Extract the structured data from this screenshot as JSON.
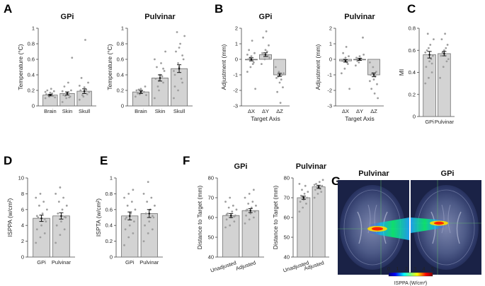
{
  "panels": [
    {
      "label": "A",
      "title": "GPi",
      "type": "bar",
      "categories": [
        "Brain",
        "Skin",
        "Skull"
      ],
      "values": [
        0.14,
        0.16,
        0.19
      ],
      "errors": [
        0.01,
        0.02,
        0.03
      ],
      "ylim": [
        0,
        1
      ],
      "yticks": [
        0,
        0.2,
        0.4,
        0.6,
        0.8,
        1
      ],
      "ylabel": "Temperature (°C)",
      "xlabel": "",
      "dots": [
        [
          0.1,
          0.12,
          0.13,
          0.15,
          0.17,
          0.19,
          0.2,
          0.22,
          0.11,
          0.14,
          0.16,
          0.18
        ],
        [
          0.05,
          0.1,
          0.12,
          0.14,
          0.17,
          0.2,
          0.25,
          0.3,
          0.62,
          0.13,
          0.11,
          0.19
        ],
        [
          0.08,
          0.12,
          0.15,
          0.2,
          0.24,
          0.3,
          0.36,
          0.85,
          0.18,
          0.14,
          0.21,
          0.26
        ]
      ]
    },
    {
      "label": "",
      "title": "Pulvinar",
      "type": "bar",
      "categories": [
        "Brain",
        "Skin",
        "Skull"
      ],
      "values": [
        0.18,
        0.36,
        0.48
      ],
      "errors": [
        0.02,
        0.04,
        0.05
      ],
      "ylim": [
        0,
        1
      ],
      "yticks": [
        0,
        0.2,
        0.4,
        0.6,
        0.8,
        1
      ],
      "ylabel": "Temperature (°C)",
      "xlabel": "",
      "dots": [
        [
          0.12,
          0.15,
          0.18,
          0.2,
          0.22,
          0.25,
          0.16,
          0.19,
          0.14,
          0.21
        ],
        [
          0.1,
          0.2,
          0.3,
          0.35,
          0.4,
          0.45,
          0.5,
          0.55,
          0.7,
          0.25,
          0.38,
          0.6,
          0.33,
          0.48
        ],
        [
          0.1,
          0.2,
          0.3,
          0.4,
          0.5,
          0.6,
          0.7,
          0.8,
          0.9,
          0.95,
          0.35,
          0.45,
          0.55,
          0.65,
          0.25,
          0.75
        ]
      ]
    },
    {
      "label": "B",
      "title": "GPi",
      "type": "bar",
      "categories": [
        "ΔX",
        "ΔY",
        "ΔZ"
      ],
      "values": [
        0,
        0.3,
        -1
      ],
      "errors": [
        0.1,
        0.12,
        0.1
      ],
      "ylim": [
        -3,
        2
      ],
      "yticks": [
        -3,
        -2,
        -1,
        0,
        1,
        2
      ],
      "ylabel": "Adjustment (mm)",
      "xlabel": "Target Axis",
      "dots": [
        [
          -0.8,
          -0.5,
          -0.2,
          0,
          0.2,
          0.4,
          0.6,
          1.2,
          -1.9,
          0.1,
          -0.3,
          0.3
        ],
        [
          -0.3,
          0,
          0.2,
          0.4,
          0.6,
          0.9,
          1.4,
          1.8,
          0.1,
          0.3,
          0.5
        ],
        [
          -0.5,
          -0.8,
          -1,
          -1.2,
          -1.5,
          -1.8,
          -2.1,
          -2.8,
          -0.9,
          -1.1,
          -1.3
        ]
      ]
    },
    {
      "label": "",
      "title": "Pulvinar",
      "type": "bar",
      "categories": [
        "ΔX",
        "ΔY",
        "ΔZ"
      ],
      "values": [
        -0.1,
        0,
        -1
      ],
      "errors": [
        0.08,
        0.07,
        0.12
      ],
      "ylim": [
        -3,
        2
      ],
      "yticks": [
        -3,
        -2,
        -1,
        0,
        1,
        2
      ],
      "ylabel": "Adjustment (mm)",
      "xlabel": "Target Axis",
      "dots": [
        [
          -0.9,
          -0.6,
          -0.3,
          -0.1,
          0.1,
          0.2,
          0.4,
          0.8,
          -1.9,
          0,
          -0.2
        ],
        [
          -0.4,
          -0.2,
          0,
          0.1,
          0.2,
          1.4,
          -0.1,
          0.05,
          0.3
        ],
        [
          -0.2,
          -0.5,
          -0.8,
          -1,
          -1.3,
          -1.6,
          -1.9,
          -2.2,
          -2.5,
          -0.9,
          -1.1,
          -1.4
        ]
      ]
    },
    {
      "label": "C",
      "title": "",
      "type": "bar",
      "categories": [
        "GPi",
        "Pulvinar"
      ],
      "values": [
        0.56,
        0.57
      ],
      "errors": [
        0.03,
        0.02
      ],
      "ylim": [
        0,
        0.8
      ],
      "yticks": [
        0,
        0.2,
        0.4,
        0.6,
        0.8
      ],
      "ylabel": "MI",
      "xlabel": "",
      "dots": [
        [
          0.3,
          0.35,
          0.4,
          0.45,
          0.5,
          0.55,
          0.6,
          0.65,
          0.7,
          0.75,
          0.52,
          0.58,
          0.62,
          0.48
        ],
        [
          0.35,
          0.45,
          0.5,
          0.55,
          0.6,
          0.65,
          0.7,
          0.75,
          0.52,
          0.58,
          0.62
        ]
      ]
    },
    {
      "label": "D",
      "title": "",
      "type": "bar",
      "categories": [
        "GPi",
        "Pulvinar"
      ],
      "values": [
        4.9,
        5.2
      ],
      "errors": [
        0.4,
        0.4
      ],
      "ylim": [
        0,
        10
      ],
      "yticks": [
        0,
        2,
        4,
        6,
        8,
        10
      ],
      "ylabel": "ISPPA (w/cm²)",
      "xlabel": "",
      "dots": [
        [
          1.8,
          2.5,
          3,
          3.5,
          4,
          4.5,
          5,
          5.5,
          6,
          6.5,
          7,
          7.5,
          8,
          4.8,
          5.2
        ],
        [
          1.8,
          2.8,
          3.5,
          4,
          4.5,
          5,
          5.5,
          6,
          6.5,
          7,
          7.5,
          8,
          8.8,
          5.1
        ]
      ]
    },
    {
      "label": "E",
      "title": "",
      "type": "bar",
      "categories": [
        "GPi",
        "Pulvinar"
      ],
      "values": [
        0.52,
        0.55
      ],
      "errors": [
        0.05,
        0.05
      ],
      "ylim": [
        0,
        1
      ],
      "yticks": [
        0,
        0.2,
        0.4,
        0.6,
        0.8,
        1
      ],
      "ylabel": "ISPTA (w/cm²)",
      "xlabel": "",
      "dots": [
        [
          0.15,
          0.25,
          0.3,
          0.35,
          0.4,
          0.45,
          0.5,
          0.55,
          0.6,
          0.65,
          0.7,
          0.75,
          0.8,
          0.85,
          0.48
        ],
        [
          0.2,
          0.3,
          0.35,
          0.4,
          0.45,
          0.5,
          0.55,
          0.6,
          0.65,
          0.7,
          0.75,
          0.8,
          0.95,
          0.52
        ]
      ]
    },
    {
      "label": "F",
      "title": "GPi",
      "type": "bar",
      "categories": [
        "Unadjusted",
        "Adjusted"
      ],
      "values": [
        61,
        63.5
      ],
      "errors": [
        1,
        1
      ],
      "ylim": [
        40,
        80
      ],
      "yticks": [
        40,
        50,
        60,
        70,
        80
      ],
      "ylabel": "Distance to Target (mm)",
      "xlabel": "",
      "dots": [
        [
          55,
          56,
          58,
          59,
          60,
          61,
          62,
          63,
          64,
          65,
          66,
          68,
          70,
          60.5,
          61.5
        ],
        [
          57,
          59,
          60,
          61,
          62,
          63,
          64,
          65,
          66,
          67,
          68,
          70,
          72,
          74,
          63.5
        ]
      ]
    },
    {
      "label": "",
      "title": "Pulvinar",
      "type": "bar",
      "categories": [
        "Unadjusted",
        "Adjusted"
      ],
      "values": [
        70,
        75.5
      ],
      "errors": [
        0.8,
        0.8
      ],
      "ylim": [
        40,
        80
      ],
      "yticks": [
        40,
        50,
        60,
        70,
        80
      ],
      "ylabel": "Distance to Target (mm)",
      "xlabel": "",
      "dots": [
        [
          63,
          65,
          67,
          68,
          69,
          70,
          71,
          72,
          73,
          74,
          76,
          77,
          70.5
        ],
        [
          70,
          72,
          73,
          74,
          75,
          76,
          77,
          78,
          79,
          75.5,
          74.5,
          76.5
        ]
      ]
    }
  ],
  "image_panel": {
    "label": "G",
    "titles": [
      "Pulvinar",
      "GPi"
    ],
    "colorbar_ticks": [
      "0",
      "1",
      "2",
      "3",
      "4",
      "5"
    ],
    "colorbar_label": "ISPPA (W/cm²)"
  }
}
